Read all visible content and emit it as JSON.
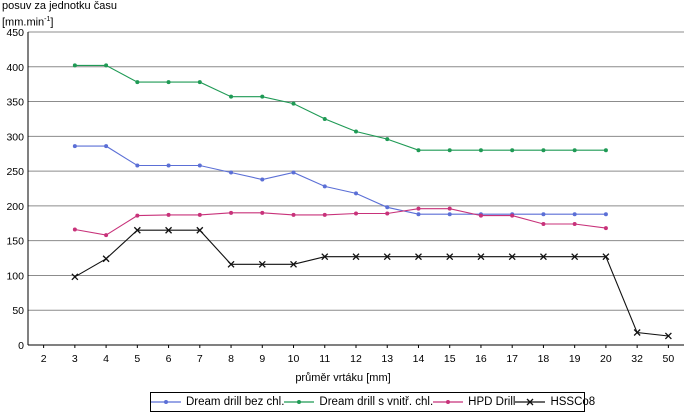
{
  "chart_data": {
    "type": "line",
    "ylabel_line1": "posuv za jednotku času",
    "ylabel_line2_pre": "[mm.min",
    "ylabel_line2_sup": "-1",
    "ylabel_line2_post": "]",
    "xlabel": "průměr vrtáku [mm]",
    "categories": [
      "2",
      "3",
      "4",
      "5",
      "6",
      "7",
      "8",
      "9",
      "10",
      "11",
      "12",
      "13",
      "14",
      "15",
      "16",
      "17",
      "18",
      "19",
      "20",
      "32",
      "50"
    ],
    "ylim": [
      0,
      450
    ],
    "yticks": [
      "0",
      "50",
      "100",
      "150",
      "200",
      "250",
      "300",
      "350",
      "400",
      "450"
    ],
    "grid": true,
    "legend_position": "bottom",
    "series": [
      {
        "name": "Dream drill bez chl.",
        "color": "#5b6fd6",
        "marker": "dot",
        "values": [
          null,
          286,
          286,
          258,
          258,
          258,
          248,
          238,
          248,
          228,
          218,
          198,
          188,
          188,
          188,
          188,
          188,
          188,
          188,
          null,
          null
        ]
      },
      {
        "name": "Dream drill s vnitř. chl.",
        "color": "#1f9a55",
        "marker": "dot",
        "values": [
          null,
          402,
          402,
          378,
          378,
          378,
          357,
          357,
          347,
          325,
          307,
          296,
          280,
          280,
          280,
          280,
          280,
          280,
          280,
          null,
          null
        ]
      },
      {
        "name": "HPD Drill",
        "color": "#c8327a",
        "marker": "dot",
        "values": [
          null,
          166,
          158,
          186,
          187,
          187,
          190,
          190,
          187,
          187,
          189,
          189,
          196,
          196,
          186,
          186,
          174,
          174,
          168,
          null,
          null
        ]
      },
      {
        "name": "HSSCo8",
        "color": "#111111",
        "marker": "x",
        "values": [
          null,
          98,
          124,
          165,
          165,
          165,
          116,
          116,
          116,
          127,
          127,
          127,
          127,
          127,
          127,
          127,
          127,
          127,
          127,
          18,
          13
        ]
      }
    ]
  }
}
